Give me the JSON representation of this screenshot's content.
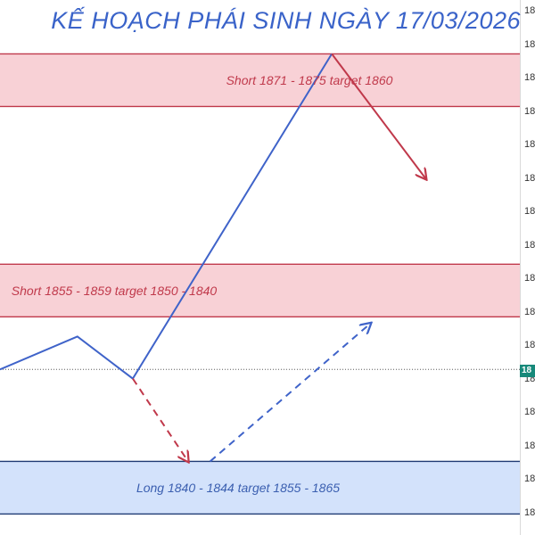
{
  "chart_data": {
    "type": "line",
    "title": "KẾ HOẠCH PHÁI SINH NGÀY 17/03/2026",
    "zones": [
      {
        "label": "Short 1871 - 1875 target 1860",
        "kind": "short",
        "low": 1871,
        "high": 1875,
        "color": "#f8d1d6",
        "border": "#c0394b",
        "text_color": "#c0394b"
      },
      {
        "label": "Short 1855 - 1859 target 1850 - 1840",
        "kind": "short",
        "low": 1855,
        "high": 1859,
        "color": "#f8d1d6",
        "border": "#c0394b",
        "text_color": "#c0394b"
      },
      {
        "label": "Long 1840 - 1844 target 1855 - 1865",
        "kind": "long",
        "low": 1840,
        "high": 1844,
        "color": "#d3e2fb",
        "border": "#1f3a73",
        "text_color": "#3b5fb0"
      }
    ],
    "series": [
      {
        "style": "solid",
        "color": "#3f63c9",
        "points": [
          [
            0,
            1851
          ],
          [
            14,
            1853.5
          ],
          [
            24,
            1850.3
          ],
          [
            60,
            1875
          ]
        ]
      },
      {
        "style": "solid-arrow",
        "color": "#c0394b",
        "points": [
          [
            60,
            1875
          ],
          [
            77,
            1865.5
          ]
        ]
      },
      {
        "style": "dashed-arrow",
        "color": "#c0394b",
        "points": [
          [
            24,
            1850.3
          ],
          [
            34,
            1844
          ]
        ]
      },
      {
        "style": "dashed-arrow",
        "color": "#3f63c9",
        "points": [
          [
            38,
            1844
          ],
          [
            67,
            1854.5
          ]
        ]
      }
    ],
    "current_price_line": 1851,
    "y_tick_labels": [
      "18",
      "18",
      "18",
      "18",
      "18",
      "18",
      "18",
      "18",
      "18",
      "18",
      "18",
      "18",
      "18",
      "18",
      "18",
      "18"
    ],
    "current_price_tag": "18",
    "ylim": [
      1838.4,
      1879.1
    ],
    "xlim": [
      0,
      94
    ],
    "grid": false,
    "legend": "none",
    "colors": {
      "title": "#3a63c9",
      "up": "#3f63c9",
      "down": "#c0394b",
      "price_tag": "#17897a"
    }
  }
}
